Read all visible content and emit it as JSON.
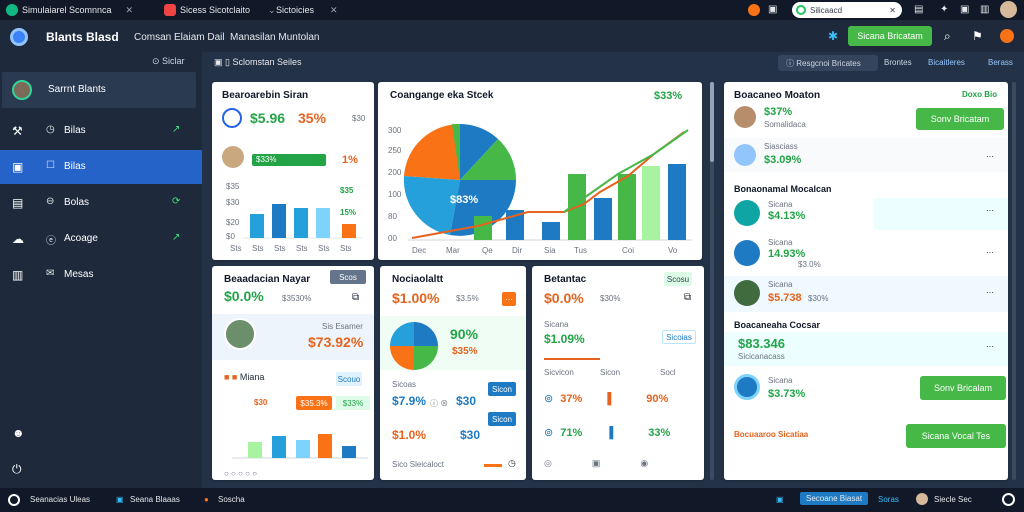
{
  "browser": {
    "tab1": "Simulaiarel Scomnnca",
    "tab2": "Sicess Sicotclaito",
    "tab3": "Sictoicies",
    "url": "Silicaacd"
  },
  "header": {
    "brand": "Blants Blasd",
    "nav1": "Comsan Elaiam Dail",
    "nav2": "Manasilan Muntolan",
    "new_button": "Sicana Bricatam"
  },
  "sidebar": {
    "sub": "Siclar",
    "profile_name": "Sarrnt Blants",
    "items": [
      {
        "label": "Bilas",
        "icon": "wrench-icon"
      },
      {
        "label": "Bilas",
        "icon": "grid-icon"
      },
      {
        "label": "Bolas",
        "icon": "book-icon"
      },
      {
        "label": "Acoage",
        "icon": "cloud-icon"
      },
      {
        "label": "Mesas",
        "icon": "inbox-icon"
      }
    ]
  },
  "subbar": {
    "crumb": "Sclomstan Seiles",
    "pill": "Resgcnoi Bricates",
    "link1": "Brontes",
    "link2": "Bicaitleres",
    "link3": "Berass"
  },
  "card1": {
    "title": "Bearoarebin Siran",
    "v1": "$5.96",
    "v2": "35%",
    "v3": "$30",
    "bar": "$33%",
    "p1": "1%",
    "p2": "$35",
    "p3": "15%",
    "yt": [
      "$35",
      "$30",
      "$20",
      "$0"
    ],
    "xt": [
      "Sts",
      "Sts",
      "Sts",
      "Sts",
      "Sts",
      "Sts"
    ]
  },
  "card2": {
    "title": "Coangange eka Stcek",
    "kpi": "$33%",
    "pie_label": "$83%",
    "yt": [
      "300",
      "250",
      "200",
      "100",
      "80",
      "00"
    ],
    "xt": [
      "Dec",
      "Mar",
      "Qe",
      "Dir",
      "Sia",
      "Tus",
      "Coi",
      "Vo"
    ]
  },
  "card3": {
    "title": "Beaadacian Nayar",
    "v1": "$0.0%",
    "v2": "$3530%",
    "tag": "Scos",
    "profile_v": "$73.92%",
    "profile_sub": "Sis Esamer",
    "legend": "Miana",
    "tag2": "Scouo",
    "p1": "$30",
    "p2": "$35.3%",
    "p3": "$33%"
  },
  "card4": {
    "title": "Nociaolaltt",
    "v1": "$1.00%",
    "v2": "$3.5%",
    "pct1": "90%",
    "pct2": "$35%",
    "r1": "$7.9%",
    "r1b": "$30",
    "r2": "$1.0%",
    "r2b": "$30",
    "footer": "Sico Sleicaloct"
  },
  "card5": {
    "title": "Betantac",
    "v1": "$0.0%",
    "v2": "$30%",
    "tag": "Scosu",
    "sub": "Sicana",
    "k": "$1.09%",
    "k_sub": "Sicoias",
    "cols": [
      "Sicvicon",
      "Sicon",
      "Socl"
    ],
    "rows": [
      [
        "37%",
        "90%"
      ],
      [
        "71%",
        "33%"
      ]
    ]
  },
  "right": {
    "head": "Boacaneo Moaton",
    "head_link": "Doxo Bio",
    "items": [
      {
        "v": "$37%",
        "sub": "Somalidaca",
        "btn": "Sonv Bricatam"
      },
      {
        "v": "$3.09%",
        "sub": "Siasciass"
      }
    ],
    "sec1": "Bonaonamal Mocalcan",
    "list1": [
      {
        "sub": "Sicana",
        "v": "$4.13%"
      },
      {
        "sub": "Sicana",
        "v": "14.93%",
        "extra": "$3.0%"
      },
      {
        "sub": "Sicana",
        "v": "$5.738",
        "extra": "$30%"
      }
    ],
    "sec2": "Boacaneaha Cocsar",
    "big": "$83.346",
    "big_sub": "Sicicanacass",
    "last": {
      "sub": "Sicana",
      "v": "$3.73%",
      "btn": "Sonv Bricalam"
    },
    "btn2": "Sicana Vocal Tes",
    "footer": "Bocuaaroo Sicatiaa"
  },
  "bottom": {
    "b1": "Seanacias Uleas",
    "b2": "Seana Blaaas",
    "b3": "Soscha",
    "b4": "Secoane Biasat",
    "b5": "Soras",
    "b6": "Siecle Sec"
  }
}
